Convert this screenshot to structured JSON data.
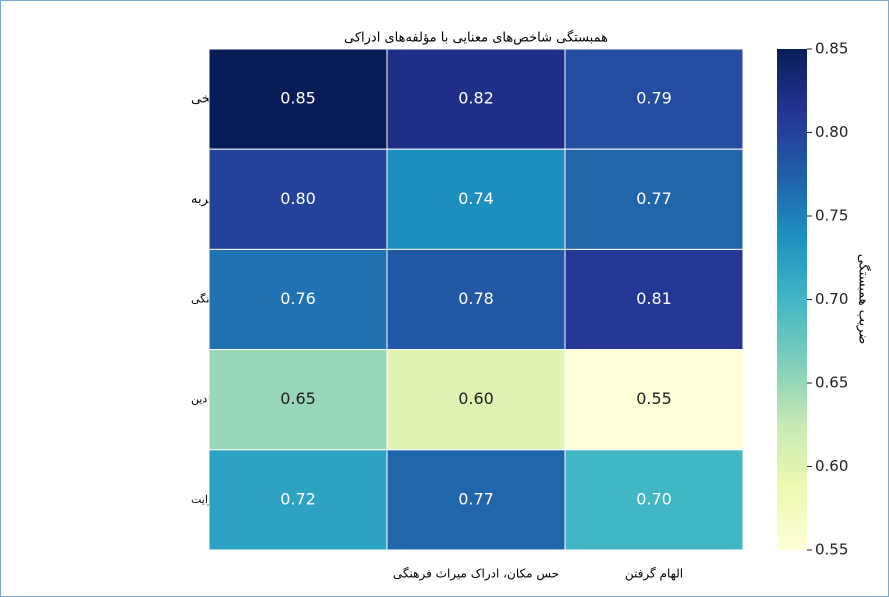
{
  "chart_data": {
    "type": "heatmap",
    "title": "همبستگی شاخص‌های معنایی با مؤلفه‌های ادراکی",
    "rows": [
      "حافظه تاریخی",
      "استفاده و تجربه",
      "زمینه فرهنگی",
      "عناصر نمادین",
      "روایت"
    ],
    "categories": [
      null,
      "حس مکان، ادراک میراث فرهنگی",
      "الهام گرفتن"
    ],
    "values": [
      [
        0.85,
        0.82,
        0.79
      ],
      [
        0.8,
        0.74,
        0.77
      ],
      [
        0.76,
        0.78,
        0.81
      ],
      [
        0.65,
        0.6,
        0.55
      ],
      [
        0.72,
        0.77,
        0.7
      ]
    ],
    "value_labels": [
      [
        "0.85",
        "0.82",
        "0.79"
      ],
      [
        "0.80",
        "0.74",
        "0.77"
      ],
      [
        "0.76",
        "0.78",
        "0.81"
      ],
      [
        "0.65",
        "0.60",
        "0.55"
      ],
      [
        "0.72",
        "0.77",
        "0.70"
      ]
    ],
    "colormap": "YlGnBu",
    "zlim": [
      0.55,
      0.85
    ],
    "colorbar_label": "ضریب همبستگی",
    "colorbar_ticks": [
      {
        "value": 0.55,
        "label": "0.55"
      },
      {
        "value": 0.6,
        "label": "0.60"
      },
      {
        "value": 0.65,
        "label": "0.65"
      },
      {
        "value": 0.7,
        "label": "0.70"
      },
      {
        "value": 0.75,
        "label": "0.75"
      },
      {
        "value": 0.8,
        "label": "0.80"
      },
      {
        "value": 0.85,
        "label": "0.85"
      }
    ]
  }
}
